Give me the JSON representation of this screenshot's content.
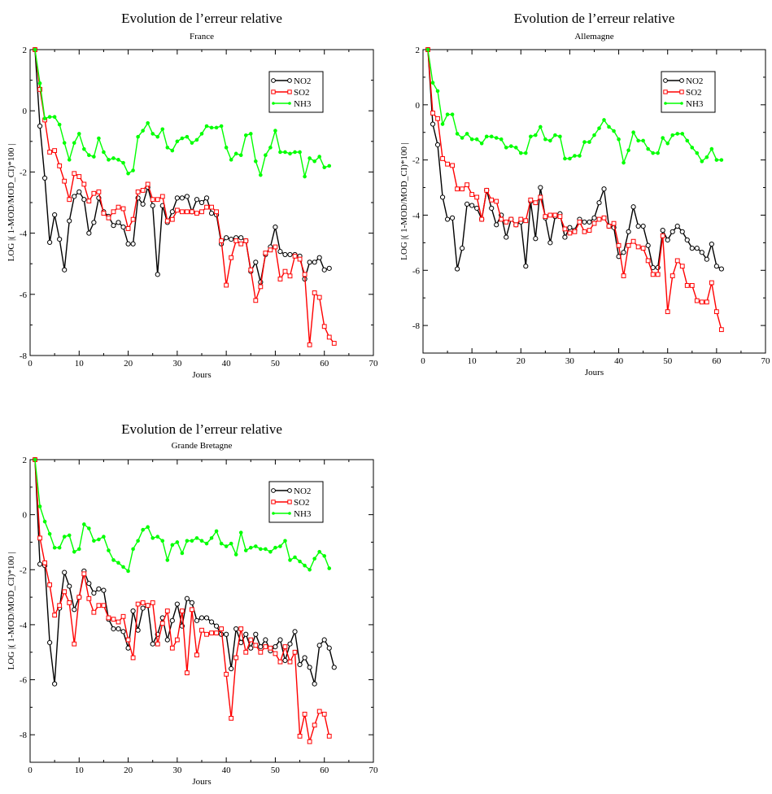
{
  "chart_data": [
    {
      "type": "line",
      "title": "Evolution de l’erreur relative",
      "subtitle": "France",
      "xlabel": "Jours",
      "ylabel": "LOG |( 1-MOD/MOD_CI)*100 |",
      "xlim": [
        0,
        70
      ],
      "ylim": [
        -8,
        2
      ],
      "xticks": [
        0,
        10,
        20,
        30,
        40,
        50,
        60,
        70
      ],
      "yticks": [
        -8,
        -6,
        -4,
        -2,
        0,
        2
      ],
      "grid": false,
      "legend_position": "top-right",
      "x_start": 1,
      "series": [
        {
          "name": "NO2",
          "color": "#000000",
          "marker": "circle",
          "values": [
            2.0,
            -0.5,
            -2.2,
            -4.3,
            -3.4,
            -4.2,
            -5.2,
            -3.6,
            -2.8,
            -2.65,
            -2.9,
            -4.0,
            -3.65,
            -2.85,
            -3.3,
            -3.45,
            -3.75,
            -3.65,
            -3.8,
            -4.35,
            -4.35,
            -2.85,
            -3.05,
            -2.5,
            -3.1,
            -5.35,
            -3.1,
            -3.65,
            -3.3,
            -2.85,
            -2.85,
            -2.8,
            -3.3,
            -2.9,
            -3.0,
            -2.85,
            -3.35,
            -3.4,
            -4.35,
            -4.15,
            -4.2,
            -4.15,
            -4.15,
            -4.25,
            -5.25,
            -4.95,
            -5.6,
            -4.7,
            -4.45,
            -3.8,
            -4.6,
            -4.7,
            -4.7,
            -4.7,
            -4.75,
            -5.5,
            -4.95,
            -4.95,
            -4.8,
            -5.2,
            -5.15
          ]
        },
        {
          "name": "SO2",
          "color": "#ff0000",
          "marker": "square",
          "values": [
            2.0,
            0.7,
            -0.3,
            -1.35,
            -1.3,
            -1.8,
            -2.3,
            -2.9,
            -2.05,
            -2.15,
            -2.4,
            -2.95,
            -2.7,
            -2.65,
            -3.35,
            -3.5,
            -3.3,
            -3.15,
            -3.2,
            -3.85,
            -3.55,
            -2.65,
            -2.6,
            -2.4,
            -2.9,
            -2.9,
            -2.8,
            -3.6,
            -3.55,
            -3.25,
            -3.3,
            -3.3,
            -3.3,
            -3.35,
            -3.3,
            -3.15,
            -3.15,
            -3.3,
            -4.25,
            -5.7,
            -4.8,
            -4.25,
            -4.35,
            -4.25,
            -5.2,
            -6.2,
            -5.75,
            -4.65,
            -4.55,
            -4.45,
            -5.5,
            -5.25,
            -5.4,
            -4.75,
            -4.85,
            -5.35,
            -7.65,
            -5.95,
            -6.1,
            -7.05,
            -7.4,
            -7.6
          ]
        },
        {
          "name": "NH3",
          "color": "#00ff00",
          "marker": "dot",
          "values": [
            2.0,
            0.9,
            -0.25,
            -0.2,
            -0.2,
            -0.45,
            -1.05,
            -1.6,
            -1.05,
            -0.75,
            -1.25,
            -1.45,
            -1.5,
            -0.9,
            -1.35,
            -1.6,
            -1.55,
            -1.6,
            -1.7,
            -2.05,
            -1.95,
            -0.85,
            -0.65,
            -0.4,
            -0.75,
            -0.85,
            -0.6,
            -1.2,
            -1.3,
            -1.0,
            -0.9,
            -0.85,
            -1.05,
            -0.95,
            -0.75,
            -0.5,
            -0.55,
            -0.55,
            -0.5,
            -1.2,
            -1.6,
            -1.4,
            -1.45,
            -0.8,
            -0.75,
            -1.65,
            -2.1,
            -1.45,
            -1.2,
            -0.65,
            -1.35,
            -1.35,
            -1.4,
            -1.35,
            -1.35,
            -2.15,
            -1.55,
            -1.65,
            -1.5,
            -1.85,
            -1.8
          ]
        }
      ]
    },
    {
      "type": "line",
      "title": "Evolution de l’erreur relative",
      "subtitle": "Allemagne",
      "xlabel": "Jours",
      "ylabel": "LOG |( 1-MOD/MOD_CI)*100 |",
      "xlim": [
        0,
        70
      ],
      "ylim": [
        -9,
        2
      ],
      "xticks": [
        0,
        10,
        20,
        30,
        40,
        50,
        60,
        70
      ],
      "yticks": [
        -8,
        -6,
        -4,
        -2,
        0,
        2
      ],
      "grid": false,
      "legend_position": "top-right",
      "x_start": 1,
      "series": [
        {
          "name": "NO2",
          "color": "#000000",
          "marker": "circle",
          "values": [
            2.0,
            -0.7,
            -1.45,
            -3.35,
            -4.15,
            -4.1,
            -5.95,
            -5.2,
            -3.6,
            -3.65,
            -3.75,
            -4.15,
            -3.1,
            -3.75,
            -4.35,
            -4.0,
            -4.8,
            -4.15,
            -4.35,
            -4.25,
            -5.85,
            -3.5,
            -4.85,
            -3.0,
            -4.1,
            -5.0,
            -4.05,
            -3.95,
            -4.8,
            -4.45,
            -4.55,
            -4.15,
            -4.25,
            -4.25,
            -4.1,
            -3.55,
            -3.05,
            -4.4,
            -4.45,
            -5.5,
            -5.35,
            -4.6,
            -3.7,
            -4.4,
            -4.4,
            -5.1,
            -5.9,
            -5.9,
            -4.55,
            -4.9,
            -4.6,
            -4.4,
            -4.6,
            -4.9,
            -5.2,
            -5.2,
            -5.35,
            -5.6,
            -5.05,
            -5.85,
            -5.95
          ]
        },
        {
          "name": "SO2",
          "color": "#ff0000",
          "marker": "square",
          "values": [
            2.0,
            -0.3,
            -0.5,
            -1.95,
            -2.15,
            -2.2,
            -3.05,
            -3.05,
            -2.9,
            -3.25,
            -3.35,
            -4.15,
            -3.1,
            -3.45,
            -3.5,
            -4.15,
            -4.25,
            -4.15,
            -4.35,
            -4.15,
            -4.2,
            -3.45,
            -3.55,
            -3.35,
            -4.05,
            -4.0,
            -4.0,
            -4.05,
            -4.5,
            -4.65,
            -4.6,
            -4.25,
            -4.6,
            -4.55,
            -4.3,
            -4.15,
            -4.1,
            -4.4,
            -4.3,
            -5.1,
            -6.2,
            -5.1,
            -4.95,
            -5.15,
            -5.2,
            -5.65,
            -6.15,
            -6.15,
            -4.75,
            -7.5,
            -6.2,
            -5.65,
            -5.85,
            -6.55,
            -6.55,
            -7.1,
            -7.15,
            -7.15,
            -6.45,
            -7.5,
            -8.15
          ]
        },
        {
          "name": "NH3",
          "color": "#00ff00",
          "marker": "dot",
          "values": [
            2.0,
            0.8,
            0.5,
            -0.7,
            -0.35,
            -0.35,
            -1.05,
            -1.2,
            -1.05,
            -1.25,
            -1.25,
            -1.4,
            -1.15,
            -1.15,
            -1.2,
            -1.25,
            -1.55,
            -1.5,
            -1.55,
            -1.75,
            -1.75,
            -1.15,
            -1.1,
            -0.8,
            -1.25,
            -1.3,
            -1.1,
            -1.15,
            -1.95,
            -1.95,
            -1.85,
            -1.85,
            -1.35,
            -1.35,
            -1.1,
            -0.85,
            -0.55,
            -0.8,
            -0.95,
            -1.25,
            -2.1,
            -1.65,
            -1.0,
            -1.3,
            -1.3,
            -1.6,
            -1.75,
            -1.75,
            -1.2,
            -1.4,
            -1.1,
            -1.05,
            -1.05,
            -1.3,
            -1.55,
            -1.75,
            -2.05,
            -1.9,
            -1.6,
            -2.0,
            -2.0
          ]
        }
      ]
    },
    {
      "type": "line",
      "title": "Evolution de l’erreur relative",
      "subtitle": "Grande Bretagne",
      "xlabel": "Jours",
      "ylabel": "LOG |( 1-MOD/MOD_CI)*100 |",
      "xlim": [
        0,
        70
      ],
      "ylim": [
        -9,
        2
      ],
      "xticks": [
        0,
        10,
        20,
        30,
        40,
        50,
        60,
        70
      ],
      "yticks": [
        -8,
        -6,
        -4,
        -2,
        0,
        2
      ],
      "grid": false,
      "legend_position": "top-right",
      "x_start": 1,
      "series": [
        {
          "name": "NO2",
          "color": "#000000",
          "marker": "circle",
          "values": [
            2.0,
            -1.8,
            -1.85,
            -4.65,
            -6.15,
            -3.4,
            -2.1,
            -2.6,
            -3.45,
            -3.0,
            -2.05,
            -2.5,
            -2.85,
            -2.7,
            -2.75,
            -3.8,
            -4.15,
            -4.15,
            -4.25,
            -4.85,
            -3.5,
            -4.2,
            -3.4,
            -3.3,
            -4.7,
            -4.35,
            -3.75,
            -4.55,
            -3.85,
            -3.25,
            -4.05,
            -3.05,
            -3.2,
            -3.85,
            -3.75,
            -3.75,
            -3.9,
            -4.05,
            -4.35,
            -4.35,
            -5.6,
            -4.15,
            -4.65,
            -4.35,
            -4.85,
            -4.35,
            -4.8,
            -4.55,
            -4.95,
            -4.8,
            -4.55,
            -5.3,
            -4.7,
            -4.25,
            -5.45,
            -5.2,
            -5.55,
            -6.15,
            -4.75,
            -4.55,
            -4.85,
            -5.55
          ]
        },
        {
          "name": "SO2",
          "color": "#ff0000",
          "marker": "square",
          "values": [
            2.0,
            -0.85,
            -1.75,
            -2.55,
            -3.65,
            -3.3,
            -2.8,
            -3.2,
            -4.7,
            -3.0,
            -2.15,
            -3.05,
            -3.55,
            -3.3,
            -3.3,
            -3.75,
            -3.8,
            -3.9,
            -3.7,
            -4.55,
            -5.2,
            -3.25,
            -3.2,
            -3.3,
            -3.2,
            -4.7,
            -3.95,
            -3.5,
            -4.85,
            -4.55,
            -3.5,
            -5.75,
            -3.45,
            -5.1,
            -4.2,
            -4.35,
            -4.3,
            -4.3,
            -4.15,
            -5.8,
            -7.4,
            -5.2,
            -4.15,
            -5.0,
            -4.55,
            -4.75,
            -5.0,
            -4.8,
            -4.85,
            -5.05,
            -5.35,
            -4.8,
            -5.35,
            -5.0,
            -8.05,
            -7.25,
            -8.25,
            -7.65,
            -7.15,
            -7.25,
            -8.05
          ]
        },
        {
          "name": "NH3",
          "color": "#00ff00",
          "marker": "dot",
          "values": [
            2.0,
            0.3,
            -0.25,
            -0.7,
            -1.2,
            -1.2,
            -0.8,
            -0.75,
            -1.35,
            -1.25,
            -0.35,
            -0.5,
            -0.95,
            -0.9,
            -0.8,
            -1.3,
            -1.65,
            -1.75,
            -1.9,
            -2.05,
            -1.25,
            -0.95,
            -0.55,
            -0.45,
            -0.85,
            -0.8,
            -0.95,
            -1.65,
            -1.1,
            -1.0,
            -1.4,
            -0.95,
            -0.95,
            -0.85,
            -0.95,
            -1.05,
            -0.85,
            -0.6,
            -1.05,
            -1.15,
            -1.05,
            -1.45,
            -0.65,
            -1.3,
            -1.2,
            -1.15,
            -1.25,
            -1.25,
            -1.35,
            -1.2,
            -1.15,
            -0.95,
            -1.65,
            -1.55,
            -1.7,
            -1.85,
            -2.0,
            -1.6,
            -1.35,
            -1.5,
            -1.95
          ]
        }
      ]
    }
  ]
}
